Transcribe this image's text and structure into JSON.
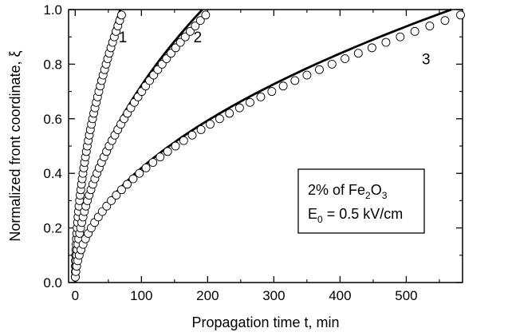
{
  "chart_data": {
    "type": "scatter",
    "xlabel": "Propagation time t, min",
    "ylabel": "Normalized front coordinate, ξ",
    "xlim": [
      -10,
      585
    ],
    "ylim": [
      0,
      1.0
    ],
    "xticks": [
      0,
      100,
      200,
      300,
      400,
      500
    ],
    "yticks": [
      0.0,
      0.2,
      0.4,
      0.6,
      0.8,
      1.0
    ],
    "xtick_labels": [
      "0",
      "100",
      "200",
      "300",
      "400",
      "500"
    ],
    "ytick_labels": [
      "0.0",
      "0.2",
      "0.4",
      "0.6",
      "0.8",
      "1.0"
    ],
    "grid": false,
    "series": [
      {
        "name": "1",
        "style": "open-circles with solid fit line",
        "x_end": 70,
        "y_end": 0.98,
        "fit_x_end": 68,
        "fit_y_end": 1.0,
        "exponent": 0.5
      },
      {
        "name": "2",
        "style": "open-circles with solid fit line",
        "x_end": 197,
        "y_end": 0.98,
        "fit_x_end": 192,
        "fit_y_end": 1.0,
        "exponent": 0.5
      },
      {
        "name": "3",
        "style": "open-circles with solid fit line",
        "x_end": 582,
        "y_end": 0.98,
        "fit_x_end": 568,
        "fit_y_end": 1.0,
        "exponent": 0.5
      }
    ],
    "annotation": {
      "line1_main": "2% of Fe",
      "line1_sub": "2",
      "line1_main2": "O",
      "line1_sub2": "3",
      "line2_main": "E",
      "line2_sub": "0",
      "line2_rest": " = 0.5 kV/cm"
    }
  }
}
